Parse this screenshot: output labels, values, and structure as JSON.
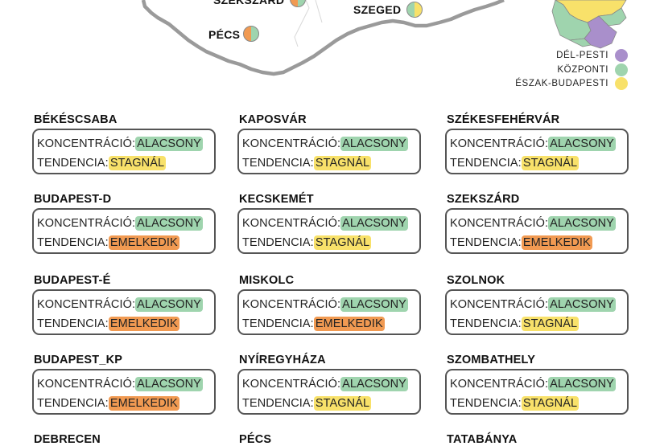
{
  "colors": {
    "alacsony": "#9fd4ae",
    "stagnal": "#f8e16a",
    "emelkedik": "#f19a52",
    "del_pesti": "#a98fcb",
    "kozponti": "#9fd4ae",
    "eszak_budapesti": "#f8e16a"
  },
  "map": {
    "cities": [
      {
        "name": "SZEKSZÁRD"
      },
      {
        "name": "SZEGED"
      },
      {
        "name": "PÉCS"
      }
    ],
    "legend": [
      {
        "label": "DÉL-PESTI",
        "color": "#a98fcb"
      },
      {
        "label": "KÖZPONTI",
        "color": "#9fd4ae"
      },
      {
        "label": "ÉSZAK-BUDAPESTI",
        "color": "#f8e16a"
      }
    ]
  },
  "labels": {
    "concentration": "KONCENTRÁCIÓ:",
    "trend": "TENDENCIA:"
  },
  "stations": [
    {
      "name": "BÉKÉSCSABA",
      "concentration": "ALACSONY",
      "trend": "STAGNÁL"
    },
    {
      "name": "KAPOSVÁR",
      "concentration": "ALACSONY",
      "trend": "STAGNÁL"
    },
    {
      "name": "SZÉKESFEHÉRVÁR",
      "concentration": "ALACSONY",
      "trend": "STAGNÁL"
    },
    {
      "name": "BUDAPEST-D",
      "concentration": "ALACSONY",
      "trend": "EMELKEDIK"
    },
    {
      "name": "KECSKEMÉT",
      "concentration": "ALACSONY",
      "trend": "STAGNÁL"
    },
    {
      "name": "SZEKSZÁRD",
      "concentration": "ALACSONY",
      "trend": "EMELKEDIK"
    },
    {
      "name": "BUDAPEST-É",
      "concentration": "ALACSONY",
      "trend": "EMELKEDIK"
    },
    {
      "name": "MISKOLC",
      "concentration": "ALACSONY",
      "trend": "EMELKEDIK"
    },
    {
      "name": "SZOLNOK",
      "concentration": "ALACSONY",
      "trend": "STAGNÁL"
    },
    {
      "name": "BUDAPEST_KP",
      "concentration": "ALACSONY",
      "trend": "EMELKEDIK"
    },
    {
      "name": "NYÍREGYHÁZA",
      "concentration": "ALACSONY",
      "trend": "STAGNÁL"
    },
    {
      "name": "SZOMBATHELY",
      "concentration": "ALACSONY",
      "trend": "STAGNÁL"
    },
    {
      "name": "DEBRECEN",
      "concentration": "",
      "trend": ""
    },
    {
      "name": "PÉCS",
      "concentration": "",
      "trend": ""
    },
    {
      "name": "TATABÁNYA",
      "concentration": "",
      "trend": ""
    }
  ]
}
